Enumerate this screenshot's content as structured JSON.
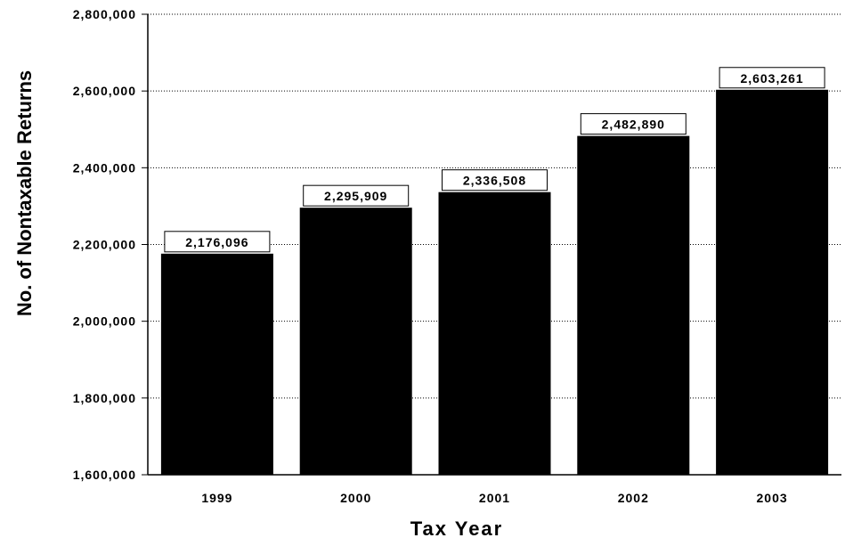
{
  "chart_data": {
    "type": "bar",
    "title": "",
    "xlabel": "Tax Year",
    "ylabel": "No. of Nontaxable Returns",
    "categories": [
      "1999",
      "2000",
      "2001",
      "2002",
      "2003"
    ],
    "values": [
      2176096,
      2295909,
      2336508,
      2482890,
      2603261
    ],
    "data_labels": [
      "2,176,096",
      "2,295,909",
      "2,336,508",
      "2,482,890",
      "2,603,261"
    ],
    "ylim": [
      1600000,
      2800000
    ],
    "yticks": [
      1600000,
      1800000,
      2000000,
      2200000,
      2400000,
      2600000,
      2800000
    ],
    "ytick_labels": [
      "1,600,000",
      "1,800,000",
      "2,000,000",
      "2,200,000",
      "2,400,000",
      "2,600,000",
      "2,800,000"
    ],
    "grid": true,
    "bar_color": "#000000"
  }
}
